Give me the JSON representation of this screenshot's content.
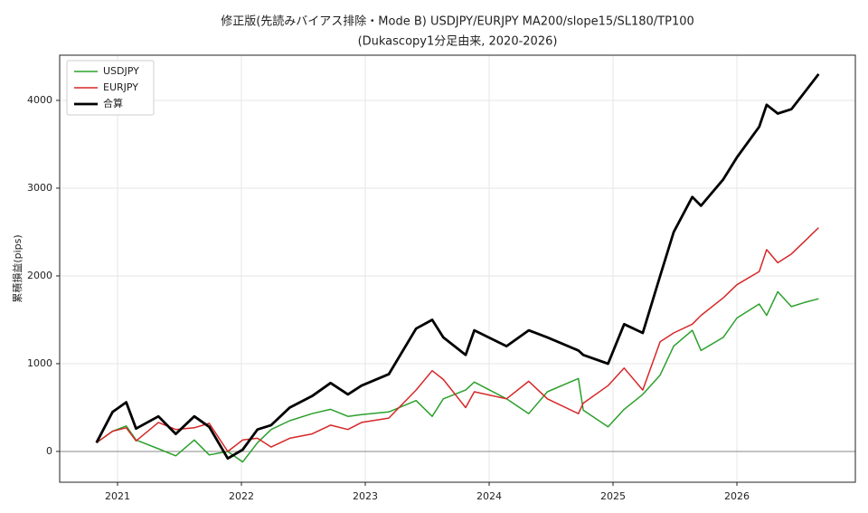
{
  "chart_data": {
    "type": "line",
    "title": "修正版(先読みバイアス排除・Mode B) USDJPY/EURJPY  MA200/slope15/SL180/TP100",
    "subtitle": "(Dukascopy1分足由来, 2020-2026)",
    "y_label": "累積損益(pips)",
    "x": [
      2020.83,
      2020.96,
      2021.07,
      2021.15,
      2021.33,
      2021.47,
      2021.62,
      2021.74,
      2021.89,
      2022.01,
      2022.13,
      2022.24,
      2022.39,
      2022.57,
      2022.72,
      2022.86,
      2022.97,
      2023.19,
      2023.41,
      2023.54,
      2023.63,
      2023.81,
      2023.88,
      2024.14,
      2024.32,
      2024.47,
      2024.72,
      2024.76,
      2024.96,
      2025.09,
      2025.24,
      2025.38,
      2025.49,
      2025.64,
      2025.71,
      2025.89,
      2026.0,
      2026.18,
      2026.24,
      2026.33,
      2026.44,
      2026.55,
      2026.66
    ],
    "series": [
      {
        "name": "USDJPY",
        "color": "#2ca02c",
        "width": 1.5,
        "values": [
          100,
          230,
          290,
          130,
          30,
          -50,
          130,
          -40,
          0,
          -120,
          100,
          250,
          350,
          430,
          480,
          400,
          420,
          450,
          580,
          400,
          600,
          700,
          790,
          600,
          430,
          680,
          830,
          470,
          280,
          480,
          650,
          870,
          1200,
          1380,
          1150,
          1300,
          1520,
          1680,
          1550,
          1820,
          1650,
          1700,
          1740
        ]
      },
      {
        "name": "EURJPY",
        "color": "#d62728",
        "width": 1.5,
        "values": [
          100,
          230,
          270,
          120,
          330,
          250,
          270,
          320,
          0,
          130,
          150,
          50,
          150,
          200,
          300,
          250,
          330,
          380,
          700,
          920,
          820,
          500,
          680,
          600,
          800,
          600,
          430,
          550,
          750,
          950,
          700,
          1250,
          1350,
          1450,
          1550,
          1750,
          1900,
          2050,
          2300,
          2150,
          2250,
          2400,
          2550
        ]
      },
      {
        "name": "合算",
        "color": "#000000",
        "width": 2.8,
        "values": [
          100,
          450,
          560,
          260,
          400,
          200,
          400,
          280,
          -80,
          20,
          250,
          300,
          500,
          630,
          780,
          650,
          750,
          880,
          1400,
          1500,
          1300,
          1100,
          1380,
          1200,
          1380,
          1300,
          1150,
          1100,
          1000,
          1450,
          1350,
          2000,
          2500,
          2900,
          2800,
          3100,
          3350,
          3700,
          3950,
          3850,
          3900,
          4100,
          4300
        ]
      }
    ],
    "xlim": [
      2020.533,
      2026.956
    ],
    "xticks": [
      2021,
      2022,
      2023,
      2024,
      2025,
      2026
    ],
    "ylim": [
      -351,
      4515
    ],
    "yticks": [
      0,
      1000,
      2000,
      3000,
      4000
    ],
    "grid": true,
    "legend": "upper-left"
  }
}
